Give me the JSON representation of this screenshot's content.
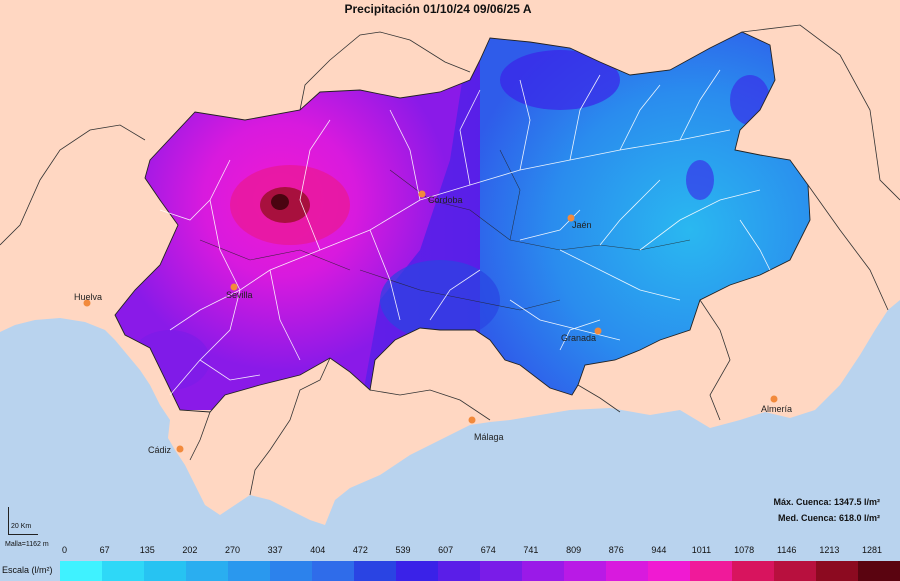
{
  "title": "Precipitación  01/10/24 09/06/25 A",
  "stats": {
    "max": "Máx. Cuenca: 1347.5 l/m²",
    "med": "Med. Cuenca: 618.0 l/m²"
  },
  "scalebar": {
    "distance": "20 Km",
    "malla": "Malla=1162 m"
  },
  "legend": {
    "label": "Escala (l/m²)",
    "ticks": [
      "0",
      "67",
      "135",
      "202",
      "270",
      "337",
      "404",
      "472",
      "539",
      "607",
      "674",
      "741",
      "809",
      "876",
      "944",
      "1011",
      "1078",
      "1146",
      "1213",
      "1281"
    ],
    "colors": [
      "#3ff2ff",
      "#2ed8f7",
      "#27c3f2",
      "#2aaef0",
      "#2a98ee",
      "#2c82ec",
      "#2f6cea",
      "#2a44e3",
      "#3a22e8",
      "#5a1ee8",
      "#7a1ce8",
      "#9a1ae8",
      "#b91ae6",
      "#d81ade",
      "#f01ad2",
      "#f01a9a",
      "#d8145e",
      "#b8103e",
      "#8c0a20",
      "#5a0410"
    ]
  },
  "cities": [
    {
      "name": "Huelva"
    },
    {
      "name": "Sevilla"
    },
    {
      "name": "Córdoba"
    },
    {
      "name": "Jaén"
    },
    {
      "name": "Granada"
    },
    {
      "name": "Almería"
    },
    {
      "name": "Málaga"
    },
    {
      "name": "Cádiz"
    }
  ],
  "colors": {
    "sea": "#b9d3ee",
    "land": "#ffd7c2",
    "border": "#333333",
    "rivers": "#ffffff",
    "city_marker": "#f28a3c"
  }
}
